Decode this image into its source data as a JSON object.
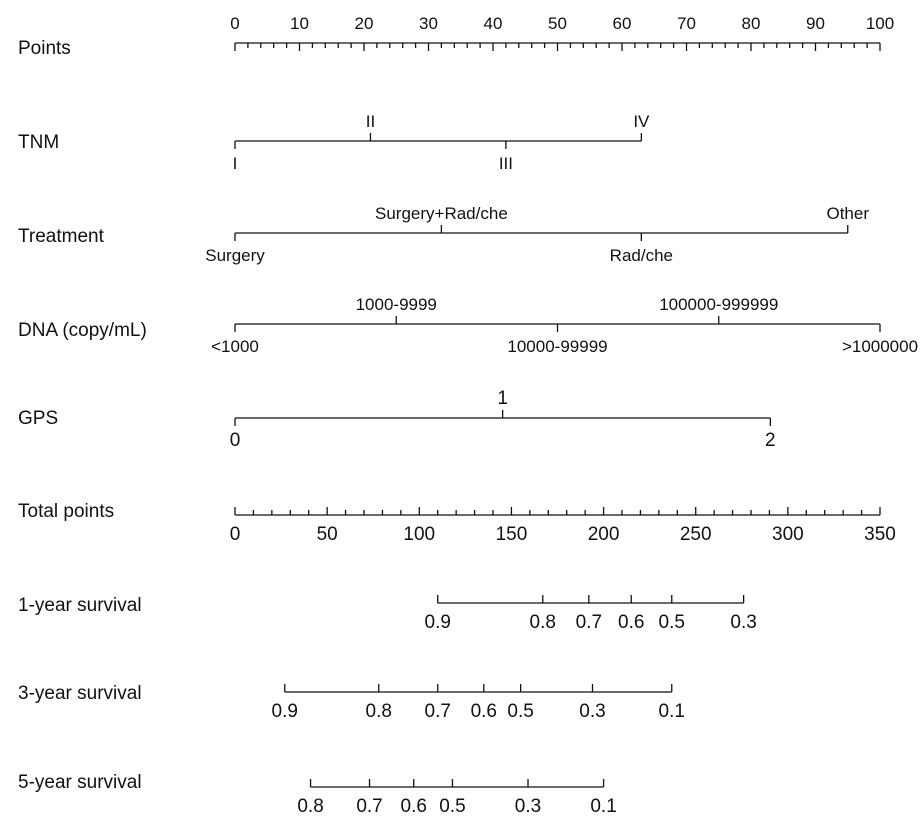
{
  "chart_data": {
    "type": "nomogram",
    "rows": [
      {
        "key": "points",
        "label": "Points",
        "min": 0,
        "max": 100,
        "ticks": [
          0,
          10,
          20,
          30,
          40,
          50,
          60,
          70,
          80,
          90,
          100
        ],
        "tick_labels": [
          "0",
          "10",
          "20",
          "30",
          "40",
          "50",
          "60",
          "70",
          "80",
          "90",
          "100"
        ],
        "minor_step": 2
      },
      {
        "key": "tnm",
        "label": "TNM",
        "levels": [
          {
            "label": "I",
            "points": 0
          },
          {
            "label": "II",
            "points": 21
          },
          {
            "label": "III",
            "points": 42
          },
          {
            "label": "IV",
            "points": 63
          }
        ]
      },
      {
        "key": "treatment",
        "label": "Treatment",
        "levels": [
          {
            "label": "Surgery",
            "points": 0
          },
          {
            "label": "Surgery+Rad/che",
            "points": 32
          },
          {
            "label": "Rad/che",
            "points": 63
          },
          {
            "label": "Other",
            "points": 95
          }
        ]
      },
      {
        "key": "dna",
        "label": "DNA (copy/mL)",
        "levels": [
          {
            "label": "<1000",
            "points": 0
          },
          {
            "label": "1000-9999",
            "points": 25
          },
          {
            "label": "10000-99999",
            "points": 50
          },
          {
            "label": "100000-999999",
            "points": 75
          },
          {
            "label": ">1000000",
            "points": 100
          }
        ]
      },
      {
        "key": "gps",
        "label": "GPS",
        "levels": [
          {
            "label": "0",
            "points": 0
          },
          {
            "label": "1",
            "points": 41.5
          },
          {
            "label": "2",
            "points": 83
          }
        ]
      },
      {
        "key": "total",
        "label": "Total points",
        "min": 0,
        "max": 350,
        "ticks": [
          0,
          50,
          100,
          150,
          200,
          250,
          300,
          350
        ],
        "tick_labels": [
          "0",
          "50",
          "100",
          "150",
          "200",
          "250",
          "300",
          "350"
        ],
        "minor_step": 10
      },
      {
        "key": "surv1",
        "label": "1-year survival",
        "probabilities": [
          {
            "label": "0.9",
            "total_points": 110
          },
          {
            "label": "0.8",
            "total_points": 167
          },
          {
            "label": "0.7",
            "total_points": 192
          },
          {
            "label": "0.6",
            "total_points": 215
          },
          {
            "label": "0.5",
            "total_points": 237
          },
          {
            "label": "0.3",
            "total_points": 276
          }
        ]
      },
      {
        "key": "surv3",
        "label": "3-year survival",
        "probabilities": [
          {
            "label": "0.9",
            "total_points": 27
          },
          {
            "label": "0.8",
            "total_points": 78
          },
          {
            "label": "0.7",
            "total_points": 110
          },
          {
            "label": "0.6",
            "total_points": 135
          },
          {
            "label": "0.5",
            "total_points": 155
          },
          {
            "label": "0.3",
            "total_points": 194
          },
          {
            "label": "0.1",
            "total_points": 237
          }
        ]
      },
      {
        "key": "surv5",
        "label": "5-year survival",
        "probabilities": [
          {
            "label": "0.8",
            "total_points": 41
          },
          {
            "label": "0.7",
            "total_points": 73
          },
          {
            "label": "0.6",
            "total_points": 97
          },
          {
            "label": "0.5",
            "total_points": 118
          },
          {
            "label": "0.3",
            "total_points": 159
          },
          {
            "label": "0.1",
            "total_points": 200
          }
        ]
      }
    ]
  }
}
